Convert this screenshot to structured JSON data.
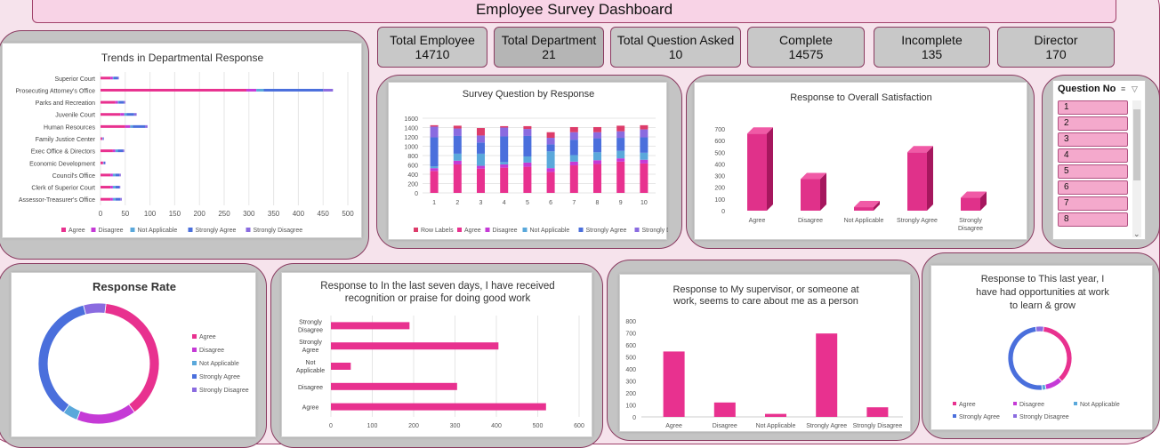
{
  "header": {
    "title": "Employee Survey Dashboard"
  },
  "kpis": [
    {
      "label": "Total Employee",
      "value": "14710"
    },
    {
      "label": "Total Department",
      "value": "21"
    },
    {
      "label": "Total Question Asked",
      "value": "10"
    },
    {
      "label": "Complete",
      "value": "14575"
    },
    {
      "label": "Incomplete",
      "value": "135"
    },
    {
      "label": "Director",
      "value": "170"
    }
  ],
  "colors": {
    "agree": "#e8318f",
    "disagree": "#c53ad6",
    "not_applicable": "#5aa8db",
    "strongly_agree": "#4a6fdc",
    "strongly_disagree": "#8a6be0",
    "row_labels": "#dd3c6a"
  },
  "slicer": {
    "title": "Question No",
    "items": [
      "1",
      "2",
      "3",
      "4",
      "5",
      "6",
      "7",
      "8"
    ],
    "icons": [
      "multi-select-icon",
      "clear-filter-icon"
    ]
  },
  "chart_data": [
    {
      "id": "trends",
      "type": "bar",
      "orientation": "horizontal",
      "stacked": true,
      "title": "Trends in Departmental Response",
      "categories": [
        "Superior Court",
        "Prosecuting Attorney's Office",
        "Parks and Recreation",
        "Juvenile Court",
        "Human Resources",
        "Family Justice Center",
        "Exec Office & Directors",
        "Economic Development",
        "Council's Office",
        "Clerk of Superior Court",
        "Assessor-Treasurer's Office"
      ],
      "series": [
        {
          "name": "Agree",
          "values": [
            20,
            295,
            30,
            40,
            50,
            3,
            25,
            5,
            20,
            20,
            20
          ]
        },
        {
          "name": "Disagree",
          "values": [
            5,
            20,
            5,
            8,
            10,
            1,
            5,
            1,
            5,
            5,
            5
          ]
        },
        {
          "name": "Not Applicable",
          "values": [
            2,
            15,
            2,
            5,
            5,
            1,
            5,
            1,
            5,
            5,
            5
          ]
        },
        {
          "name": "Strongly Agree",
          "values": [
            8,
            120,
            10,
            15,
            25,
            1,
            10,
            2,
            8,
            8,
            10
          ]
        },
        {
          "name": "Strongly Disagree",
          "values": [
            2,
            20,
            3,
            5,
            5,
            1,
            3,
            1,
            3,
            2,
            3
          ]
        }
      ],
      "xlim": [
        0,
        500
      ],
      "xticks": [
        "0",
        "50",
        "100",
        "150",
        "200",
        "250",
        "300",
        "350",
        "400",
        "450",
        "500"
      ],
      "legend": "bottom"
    },
    {
      "id": "question",
      "type": "bar",
      "stacked": true,
      "title": "Survey Question by Response",
      "categories": [
        "1",
        "2",
        "3",
        "4",
        "5",
        "6",
        "7",
        "8",
        "9",
        "10"
      ],
      "series": [
        {
          "name": "Row Labels",
          "values": [
            30,
            60,
            160,
            30,
            60,
            120,
            110,
            110,
            120,
            90
          ]
        },
        {
          "name": "Agree",
          "values": [
            470,
            610,
            520,
            540,
            560,
            450,
            590,
            620,
            670,
            630
          ]
        },
        {
          "name": "Disagree",
          "values": [
            60,
            80,
            60,
            70,
            90,
            80,
            80,
            80,
            70,
            80
          ]
        },
        {
          "name": "Not Applicable",
          "values": [
            40,
            150,
            260,
            50,
            130,
            360,
            140,
            170,
            160,
            150
          ]
        },
        {
          "name": "Strongly Agree",
          "values": [
            620,
            380,
            240,
            550,
            440,
            150,
            330,
            300,
            280,
            330
          ]
        },
        {
          "name": "Strongly Disagree",
          "values": [
            230,
            160,
            150,
            190,
            150,
            140,
            160,
            130,
            140,
            170
          ]
        }
      ],
      "ylim": [
        0,
        1600
      ],
      "yticks": [
        "0",
        "200",
        "400",
        "600",
        "800",
        "1000",
        "1200",
        "1400",
        "1600"
      ],
      "legend": "bottom"
    },
    {
      "id": "overall",
      "type": "bar",
      "style": "3d",
      "title": "Response to Overall Satisfaction",
      "categories": [
        "Agree",
        "Disagree",
        "Not Applicable",
        "Strongly Agree",
        "Strongly Disagree"
      ],
      "values": [
        660,
        270,
        30,
        500,
        110
      ],
      "ylim": [
        0,
        700
      ],
      "yticks": [
        "0",
        "100",
        "200",
        "300",
        "400",
        "500",
        "600",
        "700"
      ]
    },
    {
      "id": "rate",
      "type": "pie",
      "donut": true,
      "title": "Response Rate",
      "categories": [
        "Agree",
        "Disagree",
        "Not Applicable",
        "Strongly Agree",
        "Strongly Disagree"
      ],
      "values": [
        38,
        16,
        4,
        36,
        6
      ],
      "legend": "right"
    },
    {
      "id": "recognition",
      "type": "bar",
      "orientation": "horizontal",
      "title": "Response to In the last seven days, I have received recognition or praise for doing good work",
      "categories": [
        "Strongly Disagree",
        "Strongly Agree",
        "Not Applicable",
        "Disagree",
        "Agree"
      ],
      "values": [
        190,
        405,
        48,
        305,
        520
      ],
      "xlim": [
        0,
        600
      ],
      "xticks": [
        "0",
        "100",
        "200",
        "300",
        "400",
        "500",
        "600"
      ]
    },
    {
      "id": "supervisor",
      "type": "bar",
      "title": "Response to My supervisor, or someone at work, seems to care about me as a person",
      "categories": [
        "Agree",
        "Disagree",
        "Not Applicable",
        "Strongly Agree",
        "Strongly Disagree"
      ],
      "values": [
        545,
        120,
        25,
        695,
        80
      ],
      "ylim": [
        0,
        800
      ],
      "yticks": [
        "0",
        "100",
        "200",
        "300",
        "400",
        "500",
        "600",
        "700",
        "800"
      ]
    },
    {
      "id": "learn",
      "type": "pie",
      "donut": true,
      "title": "Response to This last year, I have had opportunities at work to learn & grow",
      "categories": [
        "Agree",
        "Disagree",
        "Not Applicable",
        "Strongly Agree",
        "Strongly Disagree"
      ],
      "values": [
        36,
        9,
        2,
        49,
        4
      ],
      "legend": "bottom"
    }
  ]
}
